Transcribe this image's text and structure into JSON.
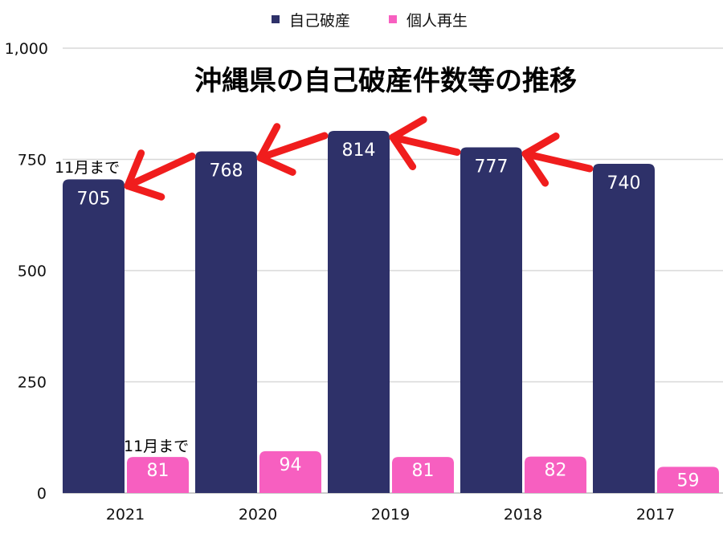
{
  "chart_data": {
    "type": "bar",
    "title": "沖縄県の自己破産件数等の推移",
    "xlabel": "",
    "ylabel": "",
    "categories": [
      "2021",
      "2020",
      "2019",
      "2018",
      "2017"
    ],
    "series": [
      {
        "name": "自己破産",
        "values": [
          705,
          768,
          814,
          777,
          740
        ],
        "color": "#2e3169"
      },
      {
        "name": "個人再生",
        "values": [
          81,
          94,
          81,
          82,
          59
        ],
        "color": "#f75fc0"
      }
    ],
    "ylim": [
      0,
      1000
    ],
    "yticks": [
      0,
      250,
      500,
      750,
      1000
    ],
    "ytick_labels": [
      "0",
      "250",
      "500",
      "750",
      "1,000"
    ],
    "grid": true,
    "legend_position": "top",
    "annotations": [
      {
        "text": "11月まで",
        "target": "自己破産 2021"
      },
      {
        "text": "11月まで",
        "target": "個人再生 2021"
      }
    ],
    "arrow_color": "#f01d1d"
  }
}
